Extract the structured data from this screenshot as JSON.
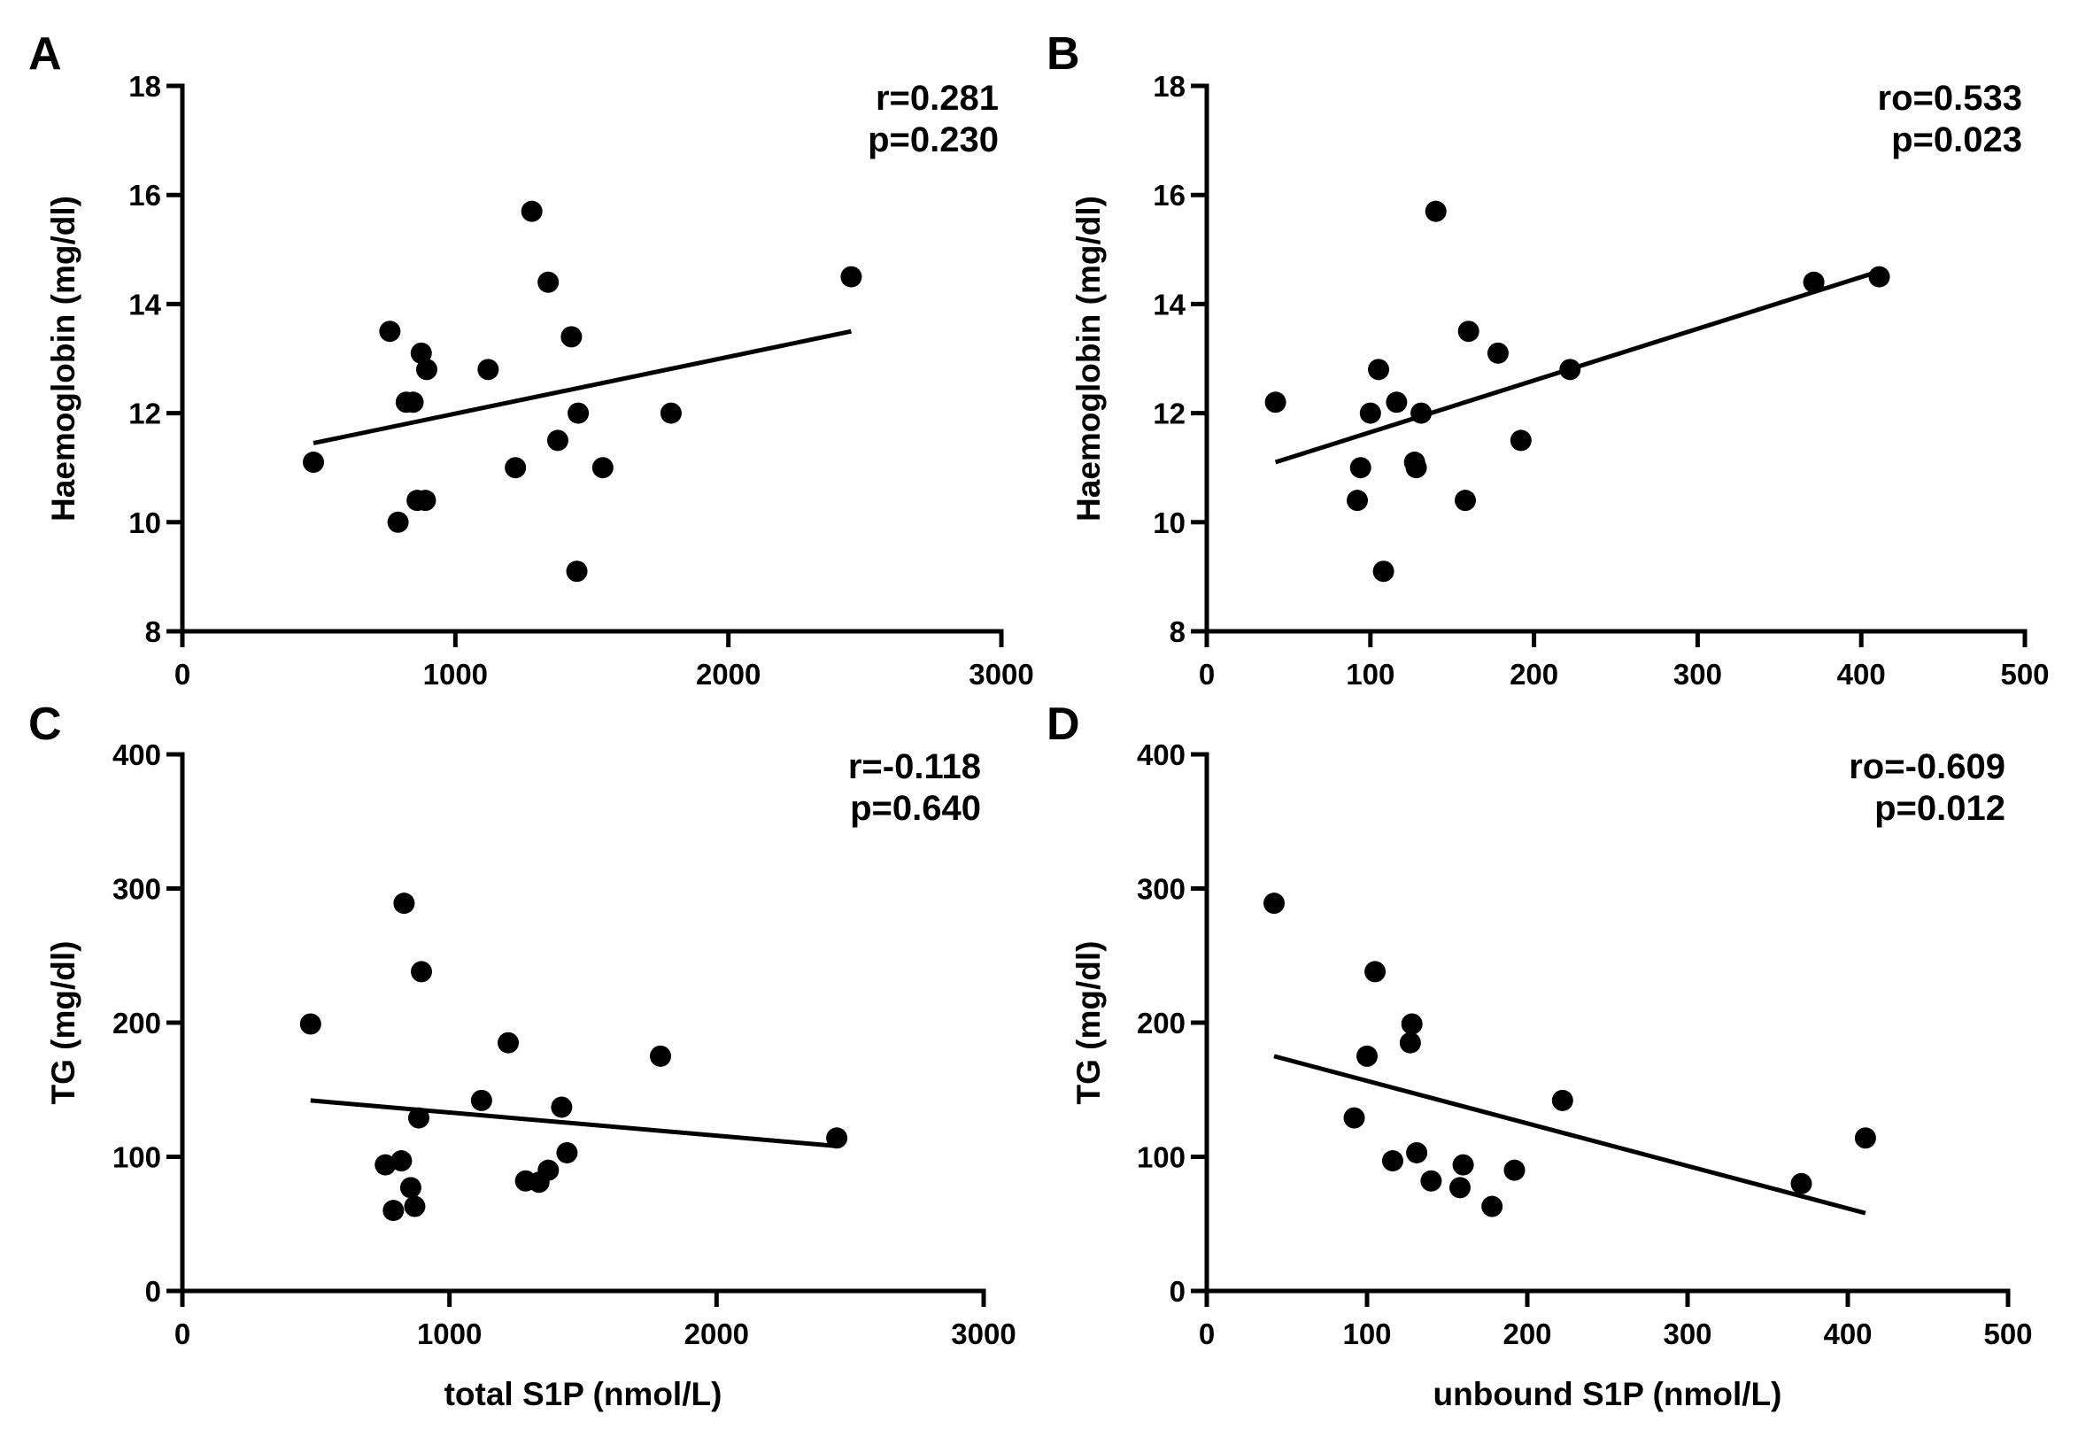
{
  "chart_data": [
    {
      "panel": "A",
      "type": "scatter",
      "xlabel": "",
      "ylabel": "Haemoglobin (mg/dl)",
      "xlim": [
        0,
        3000
      ],
      "ylim": [
        8,
        18
      ],
      "xticks": [
        "0",
        "1000",
        "2000",
        "3000"
      ],
      "yticks": [
        "8",
        "10",
        "12",
        "14",
        "16",
        "18"
      ],
      "stats": [
        "r=0.281",
        "p=0.230"
      ],
      "points": [
        {
          "x": 480,
          "y": 11.1
        },
        {
          "x": 760,
          "y": 13.5
        },
        {
          "x": 790,
          "y": 10.0
        },
        {
          "x": 820,
          "y": 12.2
        },
        {
          "x": 845,
          "y": 12.2
        },
        {
          "x": 860,
          "y": 10.4
        },
        {
          "x": 875,
          "y": 13.1
        },
        {
          "x": 890,
          "y": 10.4
        },
        {
          "x": 895,
          "y": 12.8
        },
        {
          "x": 1120,
          "y": 12.8
        },
        {
          "x": 1220,
          "y": 11.0
        },
        {
          "x": 1280,
          "y": 15.7
        },
        {
          "x": 1340,
          "y": 14.4
        },
        {
          "x": 1375,
          "y": 11.5
        },
        {
          "x": 1425,
          "y": 13.4
        },
        {
          "x": 1445,
          "y": 9.1
        },
        {
          "x": 1450,
          "y": 12.0
        },
        {
          "x": 1540,
          "y": 11.0
        },
        {
          "x": 1790,
          "y": 12.0
        },
        {
          "x": 2450,
          "y": 14.5
        }
      ],
      "fit": {
        "x": [
          480,
          2450
        ],
        "y": [
          11.45,
          13.5
        ]
      }
    },
    {
      "panel": "B",
      "type": "scatter",
      "xlabel": "",
      "ylabel": "Haemoglobin (mg/dl)",
      "xlim": [
        0,
        500
      ],
      "ylim": [
        8,
        18
      ],
      "xticks": [
        "0",
        "100",
        "200",
        "300",
        "400",
        "500"
      ],
      "yticks": [
        "8",
        "10",
        "12",
        "14",
        "16",
        "18"
      ],
      "stats": [
        "ro=0.533",
        "p=0.023"
      ],
      "points": [
        {
          "x": 42,
          "y": 12.2
        },
        {
          "x": 92,
          "y": 10.4
        },
        {
          "x": 94,
          "y": 11.0
        },
        {
          "x": 100,
          "y": 12.0
        },
        {
          "x": 105,
          "y": 12.8
        },
        {
          "x": 108,
          "y": 9.1
        },
        {
          "x": 116,
          "y": 12.2
        },
        {
          "x": 127,
          "y": 11.1
        },
        {
          "x": 128,
          "y": 11.0
        },
        {
          "x": 131,
          "y": 12.0
        },
        {
          "x": 140,
          "y": 15.7
        },
        {
          "x": 158,
          "y": 10.4
        },
        {
          "x": 160,
          "y": 13.5
        },
        {
          "x": 178,
          "y": 13.1
        },
        {
          "x": 192,
          "y": 11.5
        },
        {
          "x": 222,
          "y": 12.8
        },
        {
          "x": 371,
          "y": 14.4
        },
        {
          "x": 411,
          "y": 14.5
        }
      ],
      "fit": {
        "x": [
          42,
          411
        ],
        "y": [
          11.1,
          14.6
        ]
      }
    },
    {
      "panel": "C",
      "type": "scatter",
      "xlabel": "total S1P (nmol/L)",
      "ylabel": "TG (mg/dl)",
      "xlim": [
        0,
        3000
      ],
      "ylim": [
        0,
        400
      ],
      "xticks": [
        "0",
        "1000",
        "2000",
        "3000"
      ],
      "yticks": [
        "0",
        "100",
        "200",
        "300",
        "400"
      ],
      "stats": [
        "r=-0.118",
        "p=0.640"
      ],
      "points": [
        {
          "x": 480,
          "y": 199
        },
        {
          "x": 760,
          "y": 94
        },
        {
          "x": 790,
          "y": 60
        },
        {
          "x": 820,
          "y": 97
        },
        {
          "x": 830,
          "y": 289
        },
        {
          "x": 855,
          "y": 77
        },
        {
          "x": 870,
          "y": 63
        },
        {
          "x": 885,
          "y": 129
        },
        {
          "x": 895,
          "y": 238
        },
        {
          "x": 1120,
          "y": 142
        },
        {
          "x": 1220,
          "y": 185
        },
        {
          "x": 1285,
          "y": 82
        },
        {
          "x": 1335,
          "y": 81
        },
        {
          "x": 1370,
          "y": 90
        },
        {
          "x": 1420,
          "y": 137
        },
        {
          "x": 1440,
          "y": 103
        },
        {
          "x": 1790,
          "y": 175
        },
        {
          "x": 2450,
          "y": 114
        }
      ],
      "fit": {
        "x": [
          480,
          2450
        ],
        "y": [
          142,
          108
        ]
      }
    },
    {
      "panel": "D",
      "type": "scatter",
      "xlabel": "unbound S1P (nmol/L)",
      "ylabel": "TG (mg/dl)",
      "xlim": [
        0,
        500
      ],
      "ylim": [
        0,
        400
      ],
      "xticks": [
        "0",
        "100",
        "200",
        "300",
        "400",
        "500"
      ],
      "yticks": [
        "0",
        "100",
        "200",
        "300",
        "400"
      ],
      "stats": [
        "ro=-0.609",
        "p=0.012"
      ],
      "points": [
        {
          "x": 42,
          "y": 289
        },
        {
          "x": 92,
          "y": 129
        },
        {
          "x": 100,
          "y": 175
        },
        {
          "x": 105,
          "y": 238
        },
        {
          "x": 116,
          "y": 97
        },
        {
          "x": 127,
          "y": 185
        },
        {
          "x": 128,
          "y": 199
        },
        {
          "x": 131,
          "y": 103
        },
        {
          "x": 140,
          "y": 82
        },
        {
          "x": 158,
          "y": 77
        },
        {
          "x": 160,
          "y": 94
        },
        {
          "x": 178,
          "y": 63
        },
        {
          "x": 192,
          "y": 90
        },
        {
          "x": 222,
          "y": 142
        },
        {
          "x": 371,
          "y": 80
        },
        {
          "x": 411,
          "y": 114
        }
      ],
      "fit": {
        "x": [
          42,
          411
        ],
        "y": [
          175,
          58
        ]
      }
    }
  ]
}
